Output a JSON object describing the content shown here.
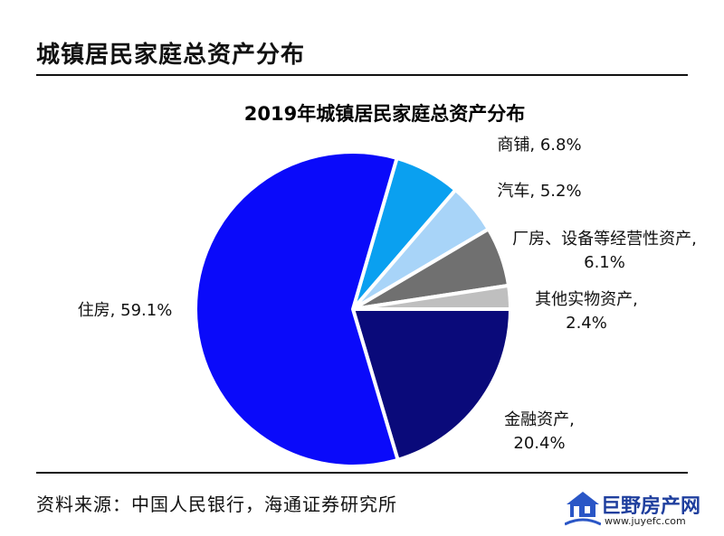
{
  "header": {
    "title": "城镇居民家庭总资产分布"
  },
  "footer": {
    "source": "资料来源：中国人民银行，海通证券研究所"
  },
  "watermark": {
    "name": "巨野房产网",
    "url": "www.juyefc.com"
  },
  "colors": {
    "housing": "#0a0afa",
    "commercial": "#0aa0f0",
    "car": "#a8d4f8",
    "plant": "#707070",
    "other": "#bfbfbf",
    "financial": "#0a0a7a"
  },
  "chart_data": {
    "type": "pie",
    "title": "2019年城镇居民家庭总资产分布",
    "slices": [
      {
        "key": "housing",
        "label": "住房, 59.1%",
        "value": 59.1
      },
      {
        "key": "commercial",
        "label": "商铺, 6.8%",
        "value": 6.8
      },
      {
        "key": "car",
        "label": "汽车, 5.2%",
        "value": 5.2
      },
      {
        "key": "plant",
        "label": "厂房、设备等经营性资产,\n6.1%",
        "value": 6.1
      },
      {
        "key": "other",
        "label": "其他实物资产,\n2.4%",
        "value": 2.4
      },
      {
        "key": "financial",
        "label": "金融资产,\n20.4%",
        "value": 20.4
      }
    ]
  }
}
